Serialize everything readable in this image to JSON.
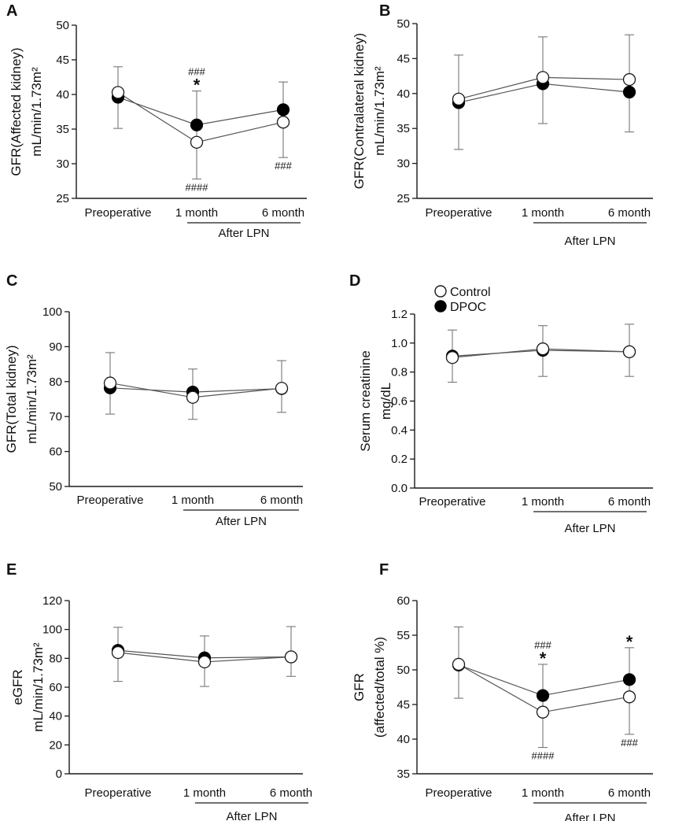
{
  "colors": {
    "axis": "#1a1a1a",
    "control_fill": "#ffffff",
    "dpoc_fill": "#000000",
    "line": "#555555",
    "errorbar": "#777777"
  },
  "legend": {
    "items": [
      {
        "name": "Control",
        "marker": "open-circle"
      },
      {
        "name": "DPOC",
        "marker": "filled-circle"
      }
    ]
  },
  "chart_data": [
    {
      "panel": "A",
      "type": "line",
      "ylabel": "GFR(Affected kidney)",
      "yunit": "mL/min/1.73m²",
      "categories": [
        "Preoperative",
        "1 month",
        "6 month"
      ],
      "group_label": "After LPN",
      "ylim": [
        25,
        50
      ],
      "yticks": [
        "25",
        "30",
        "35",
        "40",
        "45",
        "50"
      ],
      "series": [
        {
          "name": "Control",
          "values": [
            40.3,
            33.1,
            36.0
          ],
          "err_up": [
            3.7,
            7.4,
            5.8
          ],
          "err_down": [
            5.2,
            5.3,
            5.1
          ]
        },
        {
          "name": "DPOC",
          "values": [
            39.6,
            35.6,
            37.8
          ],
          "err_up": [
            0,
            0,
            0
          ],
          "err_down": [
            0,
            0,
            0
          ]
        }
      ],
      "annotations": [
        {
          "cat": 1,
          "above": true,
          "lines": [
            "###",
            "*"
          ]
        },
        {
          "cat": 1,
          "above": false,
          "lines": [
            "####"
          ]
        },
        {
          "cat": 2,
          "above": false,
          "lines": [
            "###"
          ]
        }
      ]
    },
    {
      "panel": "B",
      "type": "line",
      "ylabel": "GFR(Contralateral kidney)",
      "yunit": "mL/min/1.73m²",
      "categories": [
        "Preoperative",
        "1 month",
        "6 month"
      ],
      "group_label": "After LPN",
      "ylim": [
        25,
        50
      ],
      "yticks": [
        "25",
        "30",
        "35",
        "40",
        "45",
        "50"
      ],
      "series": [
        {
          "name": "Control",
          "values": [
            39.2,
            42.3,
            42.0
          ],
          "err_up": [
            6.3,
            5.8,
            6.4
          ],
          "err_down": [
            7.2,
            6.6,
            7.5
          ]
        },
        {
          "name": "DPOC",
          "values": [
            38.7,
            41.4,
            40.2
          ],
          "err_up": [
            0,
            0,
            0
          ],
          "err_down": [
            0,
            0,
            0
          ]
        }
      ],
      "annotations": []
    },
    {
      "panel": "C",
      "type": "line",
      "ylabel": "GFR(Total kidney)",
      "yunit": "mL/min/1.73m²",
      "categories": [
        "Preoperative",
        "1 month",
        "6 month"
      ],
      "group_label": "After LPN",
      "ylim": [
        50,
        100
      ],
      "yticks": [
        "50",
        "60",
        "70",
        "80",
        "90",
        "100"
      ],
      "series": [
        {
          "name": "Control",
          "values": [
            79.6,
            75.5,
            78.1
          ],
          "err_up": [
            8.7,
            8.1,
            7.9
          ],
          "err_down": [
            8.9,
            6.3,
            6.9
          ]
        },
        {
          "name": "DPOC",
          "values": [
            78.2,
            77.0,
            78.0
          ],
          "err_up": [
            0,
            0,
            0
          ],
          "err_down": [
            0,
            0,
            0
          ]
        }
      ],
      "annotations": []
    },
    {
      "panel": "D",
      "type": "line",
      "ylabel": "Serum creatinine",
      "yunit": "mg/dL",
      "categories": [
        "Preoperative",
        "1 month",
        "6 month"
      ],
      "group_label": "After LPN",
      "ylim": [
        0,
        1.2
      ],
      "yticks": [
        "0.0",
        "0.2",
        "0.4",
        "0.6",
        "0.8",
        "1.0",
        "1.2"
      ],
      "series": [
        {
          "name": "Control",
          "values": [
            0.9,
            0.96,
            0.94
          ],
          "err_up": [
            0.19,
            0.16,
            0.19
          ],
          "err_down": [
            0.17,
            0.19,
            0.17
          ]
        },
        {
          "name": "DPOC",
          "values": [
            0.91,
            0.95,
            0.94
          ],
          "err_up": [
            0,
            0,
            0
          ],
          "err_down": [
            0,
            0,
            0
          ]
        }
      ],
      "annotations": []
    },
    {
      "panel": "E",
      "type": "line",
      "ylabel": "eGFR",
      "yunit": "mL/min/1.73m²",
      "categories": [
        "Preoperative",
        "1 month",
        "6 month"
      ],
      "group_label": "After LPN",
      "ylim": [
        0,
        120
      ],
      "yticks": [
        "0",
        "20",
        "40",
        "60",
        "80",
        "100",
        "120"
      ],
      "series": [
        {
          "name": "Control",
          "values": [
            84.0,
            77.5,
            81.0
          ],
          "err_up": [
            17.5,
            18.0,
            21.0
          ],
          "err_down": [
            20.0,
            17.0,
            13.5
          ]
        },
        {
          "name": "DPOC",
          "values": [
            85.5,
            80.3,
            81.0
          ],
          "err_up": [
            0,
            0,
            0
          ],
          "err_down": [
            0,
            0,
            0
          ]
        }
      ],
      "annotations": []
    },
    {
      "panel": "F",
      "type": "line",
      "ylabel": "GFR",
      "yunit": "(affected/total %)",
      "categories": [
        "Preoperative",
        "1 month",
        "6 month"
      ],
      "group_label": "After LPN",
      "ylim": [
        35,
        60
      ],
      "yticks": [
        "35",
        "40",
        "45",
        "50",
        "55",
        "60"
      ],
      "series": [
        {
          "name": "Control",
          "values": [
            50.8,
            43.9,
            46.1
          ],
          "err_up": [
            5.4,
            6.9,
            7.1
          ],
          "err_down": [
            4.9,
            5.1,
            5.4
          ]
        },
        {
          "name": "DPOC",
          "values": [
            50.7,
            46.3,
            48.6
          ],
          "err_up": [
            0,
            0,
            0
          ],
          "err_down": [
            0,
            0,
            0
          ]
        }
      ],
      "annotations": [
        {
          "cat": 1,
          "above": true,
          "lines": [
            "###",
            "*"
          ]
        },
        {
          "cat": 1,
          "above": false,
          "lines": [
            "####"
          ]
        },
        {
          "cat": 2,
          "above": true,
          "lines": [
            "*"
          ]
        },
        {
          "cat": 2,
          "above": false,
          "lines": [
            "###"
          ]
        }
      ]
    }
  ]
}
